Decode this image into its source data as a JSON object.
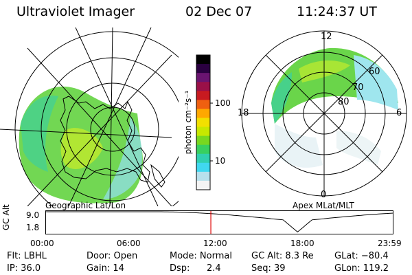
{
  "header": {
    "instrument": "Ultraviolet Imager",
    "date": "02 Dec 07",
    "time": "11:24:37 UT"
  },
  "colorbar": {
    "label": "photon cm⁻²s⁻¹",
    "ticks": [
      "100",
      "10"
    ],
    "colors": [
      "#000000",
      "#2a0040",
      "#6a1470",
      "#9a1048",
      "#c81a20",
      "#ef6010",
      "#ffa800",
      "#f2e000",
      "#c8e800",
      "#78d820",
      "#38d060",
      "#30d0b0",
      "#40d8f0",
      "#b8e0ec",
      "#f4f4f4"
    ]
  },
  "left_map": {
    "label": "Geographic Lat/Lon"
  },
  "right_map": {
    "label": "Apex MLat/MLT",
    "mlt_labels": {
      "top": "12",
      "bottom": "0",
      "left": "18",
      "right": "6"
    },
    "lat_labels": [
      "60",
      "70",
      "80"
    ]
  },
  "altitude_plot": {
    "ylabel": "GC Alt",
    "yticks": [
      "9.0",
      "1.8"
    ],
    "xticks": [
      "00:00",
      "06:00",
      "12:00",
      "18:00",
      "23:59"
    ],
    "current_time_hours": 11.41,
    "marker_color": "#e00000"
  },
  "info": {
    "flt": "Flt: LBHL",
    "ip": "IP: 36.0",
    "door": "Door: Open",
    "gain": "Gain: 14",
    "mode": "Mode: Normal",
    "dsp_label": "Dsp:",
    "dsp_value": "2.4",
    "gc_alt": "GC Alt: 8.3 Re",
    "seq": "Seq: 39",
    "glat": "GLat: −80.4",
    "glon": "GLon: 119.2"
  }
}
